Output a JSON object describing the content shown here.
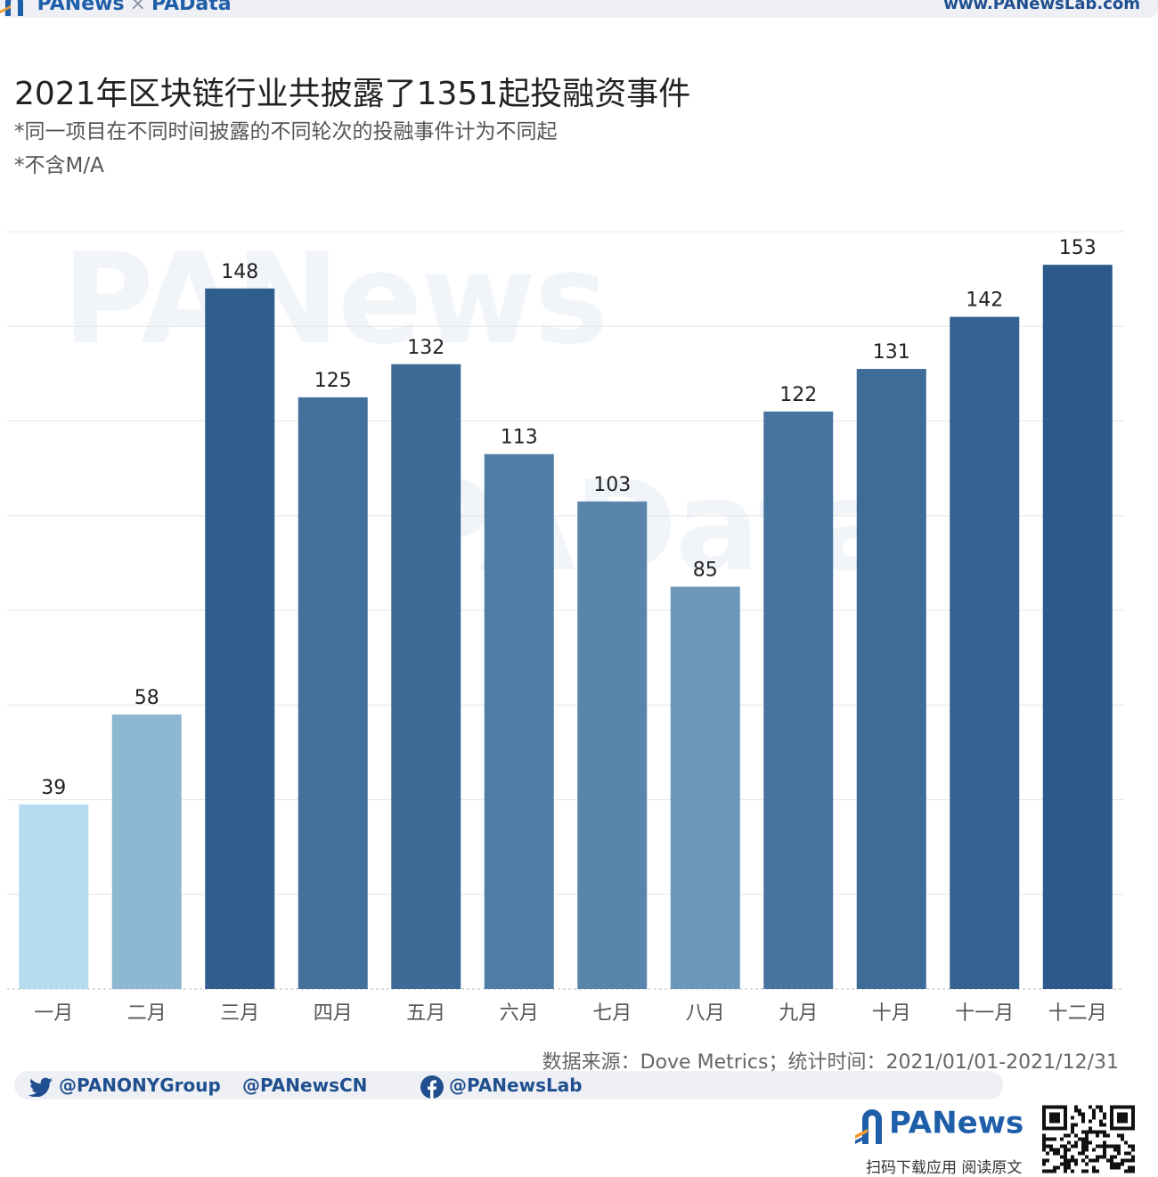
{
  "header": {
    "brand_left": "PANews",
    "brand_sep": "×",
    "brand_right": "PAData",
    "url": "www.PANewsLab.com"
  },
  "title": "2021年区块链行业共披露了1351起投融资事件",
  "subtitles": [
    "*同一项目在不同时间披露的不同轮次的投融事件计为不同起",
    "*不含M/A"
  ],
  "watermarks": [
    "PANews",
    "PAData"
  ],
  "chart_data": {
    "type": "bar",
    "title": "2021年区块链行业共披露了1351起投融资事件",
    "categories": [
      "一月",
      "二月",
      "三月",
      "四月",
      "五月",
      "六月",
      "七月",
      "八月",
      "九月",
      "十月",
      "十一月",
      "十二月"
    ],
    "values": [
      39,
      58,
      148,
      125,
      132,
      113,
      103,
      85,
      122,
      131,
      142,
      153
    ],
    "xlabel": "",
    "ylabel": "",
    "ylim": [
      0,
      160
    ],
    "grid": true,
    "data_labels": true,
    "color_scale": [
      "#b6dcef",
      "#2b5a8a"
    ]
  },
  "source": "数据来源：Dove Metrics；统计时间：2021/01/01-2021/12/31",
  "social": {
    "twitter": "@PANONYGroup",
    "weibo": "@PANewsCN",
    "facebook": "@PANewsLab"
  },
  "footer": {
    "logo": "PANews",
    "caption": "扫码下载应用 阅读原文"
  }
}
